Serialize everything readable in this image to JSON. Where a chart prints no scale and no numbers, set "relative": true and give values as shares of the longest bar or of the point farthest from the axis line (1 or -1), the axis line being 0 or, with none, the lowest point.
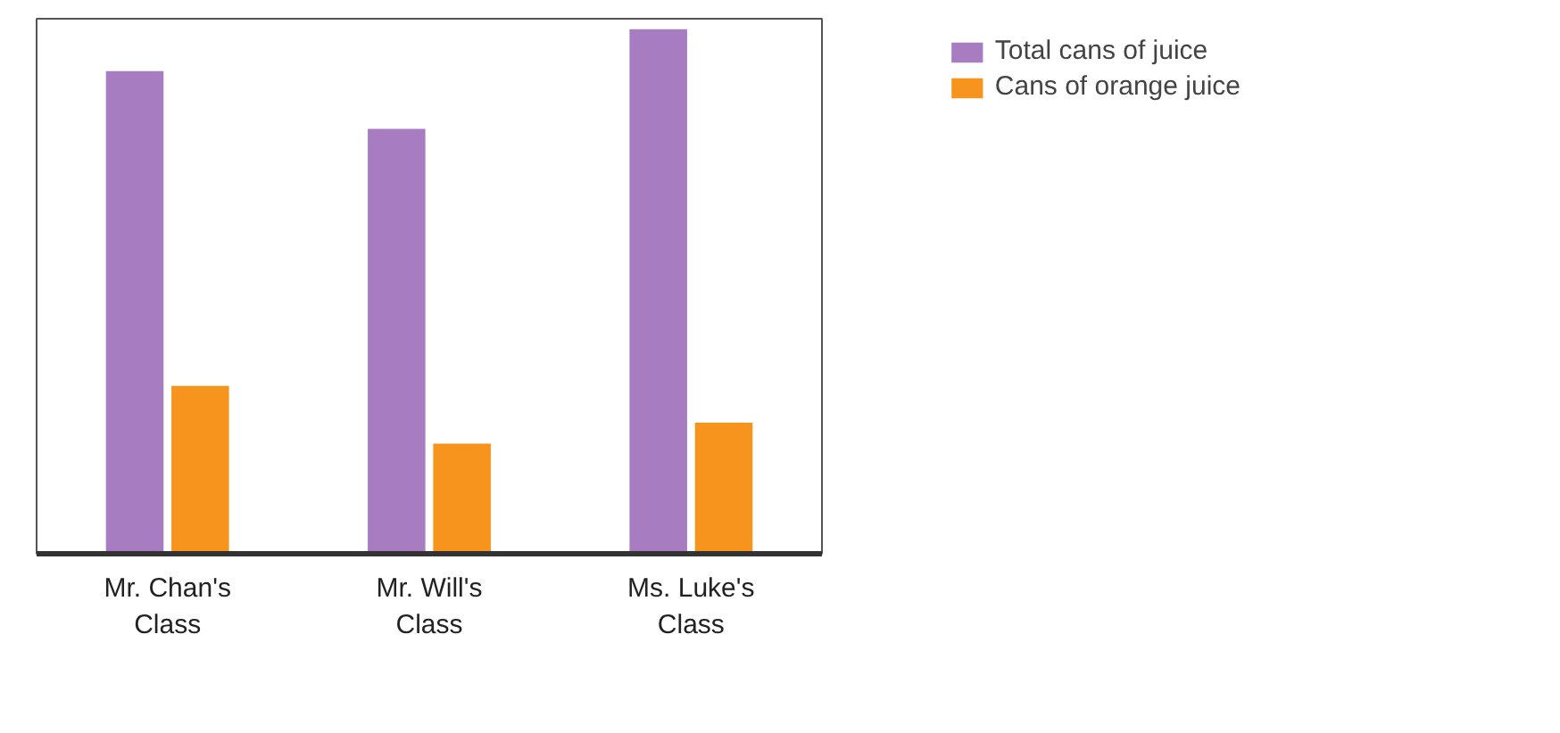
{
  "chart_data": {
    "type": "bar",
    "relative": true,
    "categories": [
      "Mr. Chan's Class",
      "Mr. Will's Class",
      "Ms. Luke's Class"
    ],
    "series": [
      {
        "name": "Total cans of juice",
        "color": "#a77cc0",
        "values": [
          0.92,
          0.81,
          1
        ]
      },
      {
        "name": "Cans of orange juice",
        "color": "#f7941d",
        "values": [
          0.32,
          0.21,
          0.25
        ]
      }
    ],
    "legend": "top right",
    "grid": false
  }
}
